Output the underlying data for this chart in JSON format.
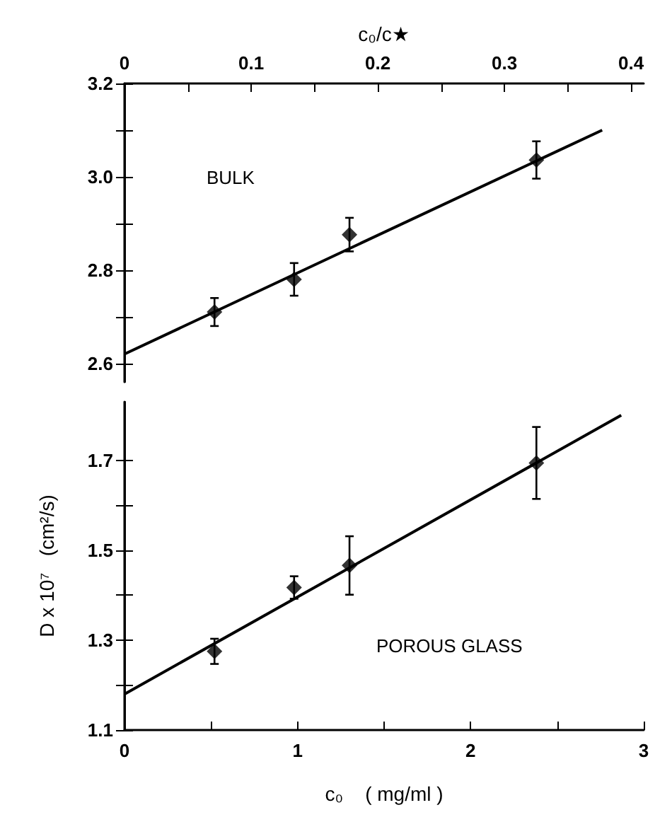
{
  "chart_data": [
    {
      "type": "scatter",
      "x2label": "c₀/c★",
      "xlim": [
        0,
        3
      ],
      "x2lim": [
        0,
        0.41
      ],
      "x2ticks": [
        0,
        {
          "value": 0.05,
          "label": null
        },
        0.1,
        {
          "value": 0.15,
          "label": null
        },
        0.2,
        {
          "value": 0.25,
          "label": null
        },
        0.3,
        {
          "value": 0.35,
          "label": null
        },
        0.4
      ],
      "ylim": [
        2.56,
        3.2
      ],
      "yticks": [
        2.6,
        {
          "value": 2.7,
          "label": null
        },
        2.8,
        {
          "value": 2.9,
          "label": null
        },
        {
          "value": 3,
          "label": "3.0"
        },
        {
          "value": 3.1,
          "label": null
        },
        3.2
      ],
      "tick_labels": "y",
      "annotations": [
        "BULK"
      ],
      "series": [
        {
          "color": "#000000",
          "marker": "diamond",
          "x": [
            0.52,
            0.98,
            1.3,
            2.38
          ],
          "values": [
            2.71,
            2.78,
            2.876,
            3.036
          ],
          "errors": [
            0.03,
            0.035,
            0.036,
            0.04
          ]
        },
        {
          "type": "line",
          "color": "#000000",
          "x": [
            0,
            2.76
          ],
          "values": [
            2.62,
            3.1
          ]
        }
      ]
    },
    {
      "type": "scatter",
      "xlabel": "c₀    ( mg/ml )",
      "ylabel": "D x 10⁷   (cm²/s)",
      "xlim": [
        0,
        3
      ],
      "xticks": [
        0,
        {
          "value": 0.5,
          "label": null
        },
        1,
        {
          "value": 1.5,
          "label": null
        },
        2,
        {
          "value": 2.5,
          "label": null
        },
        3
      ],
      "ylim": [
        1.1,
        1.83
      ],
      "yticks": [
        1.1,
        {
          "value": 1.2,
          "label": null
        },
        1.3,
        {
          "value": 1.4,
          "label": null
        },
        1.5,
        {
          "value": 1.6,
          "label": null
        },
        1.7
      ],
      "annotations": [
        "POROUS GLASS"
      ],
      "series": [
        {
          "color": "#000000",
          "marker": "diamond",
          "x": [
            0.52,
            0.98,
            1.3,
            2.38
          ],
          "values": [
            1.275,
            1.417,
            1.466,
            1.694
          ],
          "errors": [
            0.028,
            0.025,
            0.065,
            0.08
          ]
        },
        {
          "type": "line",
          "color": "#000000",
          "x": [
            0,
            2.87
          ],
          "values": [
            1.18,
            1.8
          ]
        }
      ]
    }
  ]
}
